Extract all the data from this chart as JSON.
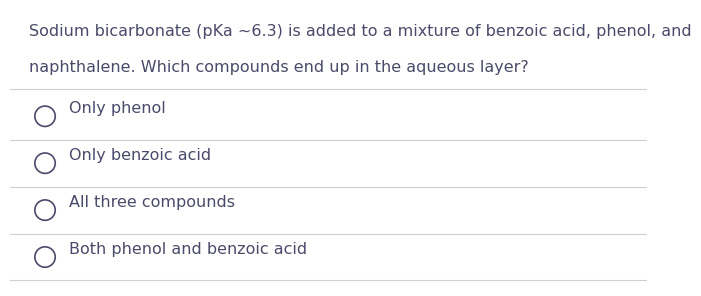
{
  "background_color": "#ffffff",
  "question_line1": "Sodium bicarbonate (pKa ~6.3) is added to a mixture of benzoic acid, phenol, and",
  "question_line2": "naphthalene. Which compounds end up in the aqueous layer?",
  "options": [
    "Only phenol",
    "Only benzoic acid",
    "All three compounds",
    "Both phenol and benzoic acid"
  ],
  "text_color": "#4a4a6a",
  "divider_color": "#d0d0d0",
  "font_size_question": 11.5,
  "font_size_options": 11.5,
  "circle_color": "#4a4a6a",
  "fig_width": 6.37,
  "fig_height": 2.76
}
